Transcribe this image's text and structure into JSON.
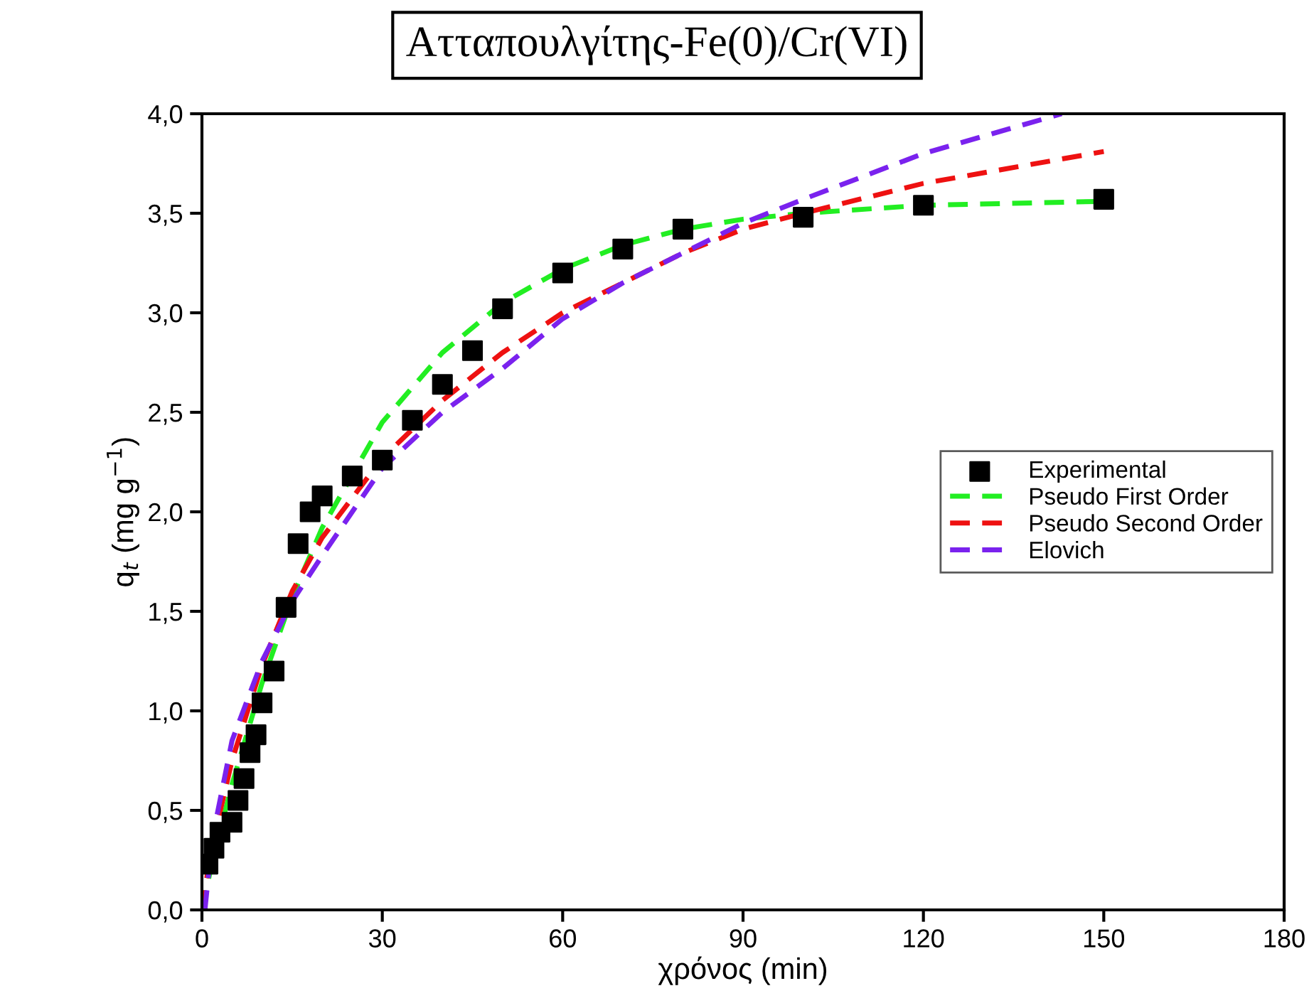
{
  "chart_data": {
    "type": "line",
    "title": "Ατταπουλγίτης-Fe(0)/Cr(VI)",
    "xlabel": "χρόνος (min)",
    "ylabel": "q$_{t}$ (mg g$^{−1}$)",
    "xlim": [
      0,
      180
    ],
    "xticks": [
      0,
      30,
      60,
      90,
      120,
      150,
      180
    ],
    "ylim": [
      0,
      4
    ],
    "yticks": [
      {
        "value": 0,
        "label": "0,0"
      },
      {
        "value": 0.5,
        "label": "0,5"
      },
      {
        "value": 1,
        "label": "1,0"
      },
      {
        "value": 1.5,
        "label": "1,5"
      },
      {
        "value": 2,
        "label": "2,0"
      },
      {
        "value": 2.5,
        "label": "2,5"
      },
      {
        "value": 3,
        "label": "3,0"
      },
      {
        "value": 3.5,
        "label": "3,5"
      },
      {
        "value": 4,
        "label": "4,0"
      }
    ],
    "grid": false,
    "legend": "center right",
    "series": [
      {
        "name": "Experimental",
        "type": "scatter",
        "marker": "square",
        "color": "#000000",
        "x": [
          1,
          2,
          3,
          5,
          6,
          7,
          8,
          9,
          10,
          12,
          14,
          16,
          18,
          20,
          25,
          30,
          35,
          40,
          45,
          50,
          60,
          70,
          80,
          100,
          120,
          150
        ],
        "values": [
          0.23,
          0.31,
          0.39,
          0.44,
          0.55,
          0.66,
          0.79,
          0.88,
          1.04,
          1.2,
          1.52,
          1.84,
          2.0,
          2.08,
          2.18,
          2.26,
          2.46,
          2.64,
          2.81,
          3.02,
          3.2,
          3.32,
          3.42,
          3.48,
          3.54,
          3.57
        ]
      },
      {
        "name": "Pseudo First Order",
        "marker": "none",
        "line_style": "dashed",
        "color": "#22ee22",
        "x": [
          0,
          2,
          5,
          10,
          15,
          20,
          30,
          40,
          50,
          60,
          70,
          80,
          90,
          100,
          120,
          150
        ],
        "values": [
          0,
          0.28,
          0.63,
          1.14,
          1.57,
          1.92,
          2.45,
          2.8,
          3.05,
          3.22,
          3.34,
          3.42,
          3.47,
          3.5,
          3.54,
          3.56
        ]
      },
      {
        "name": "Pseudo Second Order",
        "marker": "none",
        "line_style": "dashed",
        "color": "#ee1111",
        "x": [
          0,
          1,
          2,
          5,
          10,
          15,
          20,
          30,
          40,
          50,
          60,
          70,
          80,
          90,
          100,
          120,
          150
        ],
        "values": [
          0,
          0.2,
          0.36,
          0.75,
          1.23,
          1.6,
          1.87,
          2.27,
          2.56,
          2.8,
          3.0,
          3.15,
          3.3,
          3.42,
          3.5,
          3.65,
          3.81
        ]
      },
      {
        "name": "Elovich",
        "marker": "none",
        "line_style": "dashed",
        "color": "#7a22ee",
        "x": [
          0.5,
          1,
          2,
          5,
          10,
          15,
          20,
          30,
          40,
          50,
          60,
          70,
          80,
          90,
          100,
          120,
          143
        ],
        "values": [
          0,
          0.15,
          0.4,
          0.85,
          1.25,
          1.55,
          1.78,
          2.22,
          2.5,
          2.72,
          2.97,
          3.15,
          3.3,
          3.45,
          3.57,
          3.8,
          4.0
        ]
      }
    ]
  }
}
